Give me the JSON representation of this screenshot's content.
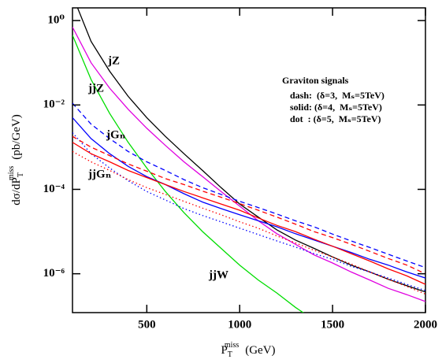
{
  "chart_data": {
    "type": "line",
    "yscale": "log",
    "grid": false,
    "xlabel": {
      "text": "P",
      "sub": "T",
      "sup": "miss",
      "unit": "(GeV)"
    },
    "ylabel": {
      "text": "dσ/dP",
      "sub": "T",
      "sup": "miss",
      "unit": "(pb/GeV)"
    },
    "xlim": [
      100,
      2000
    ],
    "ylim": [
      1.2e-07,
      2
    ],
    "xticks": [
      500,
      1000,
      1500,
      2000
    ],
    "yticks": [
      {
        "value": 1,
        "label": "10⁰"
      },
      {
        "value": 0.01,
        "label": "10⁻²"
      },
      {
        "value": 0.0001,
        "label": "10⁻⁴"
      },
      {
        "value": 1e-06,
        "label": "10⁻⁶"
      }
    ],
    "legend": {
      "title": "Graviton signals",
      "entries": [
        "dash:  (δ=3,  Mₛ=5TeV)",
        "solid: (δ=4,  Mₛ=5TeV)",
        "dot  : (δ=5,  Mₛ=5TeV)"
      ]
    },
    "x": [
      100,
      200,
      300,
      400,
      500,
      600,
      700,
      800,
      900,
      1000,
      1100,
      1200,
      1300,
      1400,
      1500,
      1600,
      1700,
      1800,
      1900,
      2000
    ],
    "series": [
      {
        "name": "jZ",
        "color": "#000000",
        "line_style": "solid",
        "values": [
          4.0,
          0.32,
          0.063,
          0.016,
          0.005,
          0.0018,
          0.0007,
          0.00028,
          0.00011,
          4.5e-05,
          2.2e-05,
          1.1e-05,
          6.3e-06,
          4e-06,
          2.5e-06,
          1.6e-06,
          1.1e-06,
          7.4e-07,
          5.2e-07,
          3.7e-07
        ]
      },
      {
        "name": "jjZ",
        "color": "#e000e0",
        "line_style": "solid",
        "values": [
          0.7,
          0.1,
          0.025,
          0.0079,
          0.0028,
          0.0011,
          0.00045,
          0.0002,
          8.9e-05,
          4e-05,
          1.8e-05,
          8.9e-06,
          5e-06,
          2.8e-06,
          1.8e-06,
          1.1e-06,
          7.1e-07,
          4.5e-07,
          3.2e-07,
          2.2e-07
        ]
      },
      {
        "name": "jjW",
        "color": "#00dd00",
        "line_style": "solid",
        "values": [
          0.45,
          0.04,
          0.0063,
          0.0013,
          0.00032,
          8.9e-05,
          2.8e-05,
          1e-05,
          4e-06,
          1.6e-06,
          7.1e-07,
          3.5e-07,
          1.6e-07,
          8e-08,
          null,
          null,
          null,
          null,
          null,
          null
        ]
      },
      {
        "color": "#0000ff",
        "line_style": "dash",
        "values": [
          0.011,
          0.0035,
          0.0016,
          0.00079,
          0.00045,
          0.00028,
          0.00017,
          0.00011,
          7.6e-05,
          5.2e-05,
          3.7e-05,
          2.6e-05,
          1.8e-05,
          1.3e-05,
          8.7e-06,
          6e-06,
          4.2e-06,
          2.9e-06,
          2e-06,
          1.4e-06
        ]
      },
      {
        "name": "jGₙ",
        "color": "#0000ff",
        "line_style": "solid",
        "values": [
          0.005,
          0.0016,
          0.0007,
          0.00035,
          0.0002,
          0.00013,
          7.9e-05,
          5e-05,
          3.5e-05,
          2.5e-05,
          1.8e-05,
          1.3e-05,
          8.9e-06,
          6.3e-06,
          4.5e-06,
          3.2e-06,
          2.2e-06,
          1.6e-06,
          1.1e-06,
          7.9e-07
        ]
      },
      {
        "color": "#0000ff",
        "line_style": "dot",
        "values": [
          0.0022,
          0.0007,
          0.00032,
          0.00016,
          8.9e-05,
          5.6e-05,
          3.5e-05,
          2.4e-05,
          1.7e-05,
          1.2e-05,
          8.5e-06,
          6e-06,
          4.3e-06,
          3e-06,
          2.2e-06,
          1.5e-06,
          1.1e-06,
          7.9e-07,
          5.6e-07,
          4e-07
        ]
      },
      {
        "color": "#ff0000",
        "line_style": "dash",
        "values": [
          0.0018,
          0.001,
          0.00063,
          0.0004,
          0.00027,
          0.00018,
          0.00013,
          9.1e-05,
          6.5e-05,
          4.6e-05,
          3.2e-05,
          2.2e-05,
          1.5e-05,
          1e-05,
          7.2e-06,
          5e-06,
          3.4e-06,
          2.3e-06,
          1.6e-06,
          1e-06
        ]
      },
      {
        "name": "jjGₙ",
        "color": "#ff0000",
        "line_style": "solid",
        "values": [
          0.0013,
          0.0007,
          0.00045,
          0.00028,
          0.00019,
          0.00013,
          8.9e-05,
          6.3e-05,
          4.5e-05,
          3.2e-05,
          2.1e-05,
          1.4e-05,
          1e-05,
          6.6e-06,
          4.5e-06,
          3e-06,
          2e-06,
          1.3e-06,
          8.9e-07,
          5.6e-07
        ]
      },
      {
        "color": "#ff0000",
        "line_style": "dot",
        "values": [
          0.00079,
          0.00045,
          0.00028,
          0.00017,
          0.00011,
          7.6e-05,
          5.2e-05,
          3.6e-05,
          2.5e-05,
          1.7e-05,
          1.2e-05,
          7.9e-06,
          5.4e-06,
          3.6e-06,
          2.5e-06,
          1.7e-06,
          1.1e-06,
          7.4e-07,
          5e-07,
          3.3e-07
        ]
      }
    ]
  }
}
